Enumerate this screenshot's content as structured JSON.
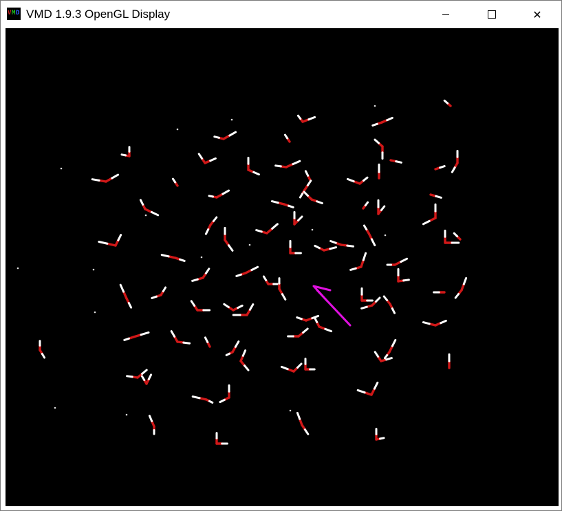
{
  "window": {
    "title": "VMD 1.9.3 OpenGL Display",
    "icon": "vmd-app-icon",
    "icon_letters": [
      "V",
      "M",
      "D"
    ],
    "icon_colors": [
      "#d02020",
      "#20c020",
      "#3060ff"
    ],
    "controls": {
      "minimize_icon": "minimize-icon",
      "maximize_icon": "maximize-icon",
      "close_icon": "close-icon",
      "close_glyph": "✕"
    }
  },
  "display": {
    "background": "#000000",
    "representation": "licorice water molecules",
    "oxygen_color": "#d01818",
    "hydrogen_color": "#ffffff",
    "annotation_color": "#e010e0",
    "annotation_icon": "arrow-icon"
  }
}
